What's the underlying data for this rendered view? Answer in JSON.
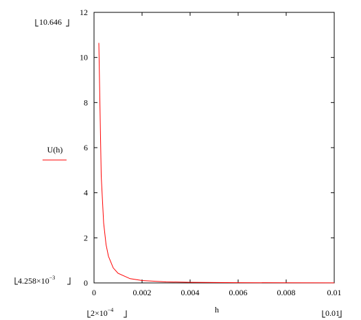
{
  "chart_data": {
    "type": "line",
    "y_label": "U(h)",
    "x_label": "h",
    "range_markers": {
      "y_max": "10.646",
      "y_min_base": "4.258×10",
      "y_min_exp": "−3",
      "x_min_base": "2×10",
      "x_min_exp": "−4",
      "x_max": "0.01"
    },
    "x": [
      0.0002,
      0.0003,
      0.0004,
      0.0005,
      0.0006,
      0.0008,
      0.001,
      0.0015,
      0.002,
      0.003,
      0.004,
      0.006,
      0.008,
      0.01
    ],
    "series": [
      {
        "name": "U(h)",
        "color": "#ff0000",
        "values": [
          10.646,
          4.732,
          2.662,
          1.703,
          1.183,
          0.665,
          0.426,
          0.189,
          0.106,
          0.047,
          0.027,
          0.012,
          0.007,
          0.004258
        ]
      }
    ],
    "xlim": [
      0,
      0.01
    ],
    "xticks": [
      0,
      0.002,
      0.004,
      0.006,
      0.008,
      0.01
    ],
    "ylim": [
      0,
      12
    ],
    "yticks": [
      0,
      2,
      4,
      6,
      8,
      10,
      12
    ]
  }
}
